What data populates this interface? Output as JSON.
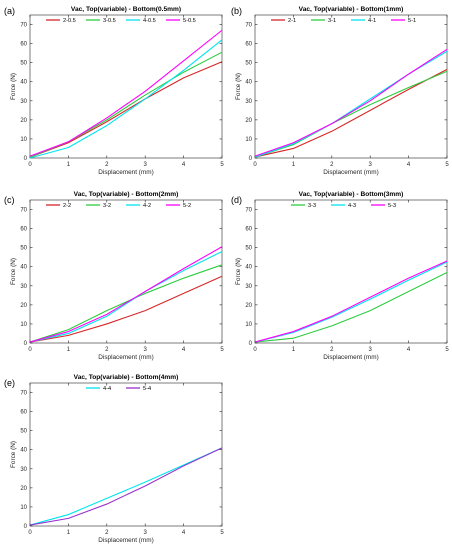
{
  "chart_data": [
    {
      "type": "line",
      "panel_label": "(a)",
      "title": "Vac, Top(variable) - Bottom(0.5mm)",
      "xlabel": "Displacement (mm)",
      "ylabel": "Force (N)",
      "xlim": [
        0,
        5
      ],
      "ylim": [
        0,
        75
      ],
      "xticks": [
        0,
        1,
        2,
        3,
        4,
        5
      ],
      "yticks": [
        0,
        10,
        20,
        30,
        40,
        50,
        60,
        70
      ],
      "legend_position": "top",
      "x": [
        0,
        1,
        2,
        3,
        4,
        5
      ],
      "series": [
        {
          "name": "2-0.5",
          "color": "#d62728",
          "values": [
            0.5,
            8,
            19,
            31,
            42,
            50.5
          ]
        },
        {
          "name": "3-0.5",
          "color": "#2ecc40",
          "values": [
            0.5,
            8.5,
            20,
            33,
            45,
            55.5
          ]
        },
        {
          "name": "4-0.5",
          "color": "#00e5ee",
          "values": [
            0,
            5.5,
            17,
            31,
            46,
            62
          ]
        },
        {
          "name": "5-0.5",
          "color": "#ff00ff",
          "values": [
            1,
            8.5,
            21,
            35,
            51,
            67
          ]
        }
      ]
    },
    {
      "type": "line",
      "panel_label": "(b)",
      "title": "Vac, Top(variable) - Bottom(1mm)",
      "xlabel": "Displacement (mm)",
      "ylabel": "Force (N)",
      "xlim": [
        0,
        5
      ],
      "ylim": [
        0,
        75
      ],
      "xticks": [
        0,
        1,
        2,
        3,
        4,
        5
      ],
      "yticks": [
        0,
        10,
        20,
        30,
        40,
        50,
        60,
        70
      ],
      "legend_position": "top",
      "x": [
        0,
        1,
        2,
        3,
        4,
        5
      ],
      "series": [
        {
          "name": "2-1",
          "color": "#d62728",
          "values": [
            0.5,
            5,
            14,
            25,
            36,
            46.5
          ]
        },
        {
          "name": "3-1",
          "color": "#2ecc40",
          "values": [
            0.5,
            7,
            18,
            28,
            37,
            45.5
          ]
        },
        {
          "name": "4-1",
          "color": "#00e5ee",
          "values": [
            0.5,
            7.5,
            18,
            31,
            44,
            56
          ]
        },
        {
          "name": "5-1",
          "color": "#ff00ff",
          "values": [
            1,
            8,
            18,
            30,
            44,
            57
          ]
        }
      ]
    },
    {
      "type": "line",
      "panel_label": "(c)",
      "title": "Vac, Top(variable) - Bottom(2mm)",
      "xlabel": "Displacement (mm)",
      "ylabel": "Force (N)",
      "xlim": [
        0,
        5
      ],
      "ylim": [
        0,
        75
      ],
      "xticks": [
        0,
        1,
        2,
        3,
        4,
        5
      ],
      "yticks": [
        0,
        10,
        20,
        30,
        40,
        50,
        60,
        70
      ],
      "legend_position": "top",
      "x": [
        0,
        1,
        2,
        3,
        4,
        5
      ],
      "series": [
        {
          "name": "2-2",
          "color": "#d62728",
          "values": [
            0.5,
            4,
            10,
            17,
            26,
            35
          ]
        },
        {
          "name": "3-2",
          "color": "#2ecc40",
          "values": [
            0.5,
            7,
            17,
            26,
            34,
            41
          ]
        },
        {
          "name": "4-2",
          "color": "#00e5ee",
          "values": [
            0.5,
            5,
            14,
            27,
            38,
            48
          ]
        },
        {
          "name": "5-2",
          "color": "#ff00ff",
          "values": [
            0.5,
            6,
            15,
            27,
            39,
            50.5
          ]
        }
      ]
    },
    {
      "type": "line",
      "panel_label": "(d)",
      "title": "Vac, Top(variable) - Bottom(3mm)",
      "xlabel": "Displacement (mm)",
      "ylabel": "Force (N)",
      "xlim": [
        0,
        5
      ],
      "ylim": [
        0,
        75
      ],
      "xticks": [
        0,
        1,
        2,
        3,
        4,
        5
      ],
      "yticks": [
        0,
        10,
        20,
        30,
        40,
        50,
        60,
        70
      ],
      "legend_position": "top",
      "x": [
        0,
        1,
        2,
        3,
        4,
        5
      ],
      "series": [
        {
          "name": "3-3",
          "color": "#2ecc40",
          "values": [
            0.5,
            2.5,
            9,
            17,
            27,
            37
          ]
        },
        {
          "name": "4-3",
          "color": "#00e5ee",
          "values": [
            0.5,
            5.5,
            13.5,
            23,
            33,
            42.5
          ]
        },
        {
          "name": "5-3",
          "color": "#ff00ff",
          "values": [
            0.5,
            6,
            14,
            24,
            34,
            43
          ]
        }
      ]
    },
    {
      "type": "line",
      "panel_label": "(e)",
      "title": "Vac, Top(variable) - Bottom(4mm)",
      "xlabel": "Displacement (mm)",
      "ylabel": "Force (N)",
      "xlim": [
        0,
        5
      ],
      "ylim": [
        0,
        75
      ],
      "xticks": [
        0,
        1,
        2,
        3,
        4,
        5
      ],
      "yticks": [
        0,
        10,
        20,
        30,
        40,
        50,
        60,
        70
      ],
      "legend_position": "top",
      "x": [
        0,
        1,
        2,
        3,
        4,
        5
      ],
      "series": [
        {
          "name": "4-4",
          "color": "#00e5ee",
          "values": [
            0.5,
            6,
            14.5,
            23,
            32,
            41
          ]
        },
        {
          "name": "5-4",
          "color": "#9932cc",
          "values": [
            0.5,
            4,
            11.5,
            21,
            31.5,
            41
          ]
        }
      ]
    }
  ]
}
